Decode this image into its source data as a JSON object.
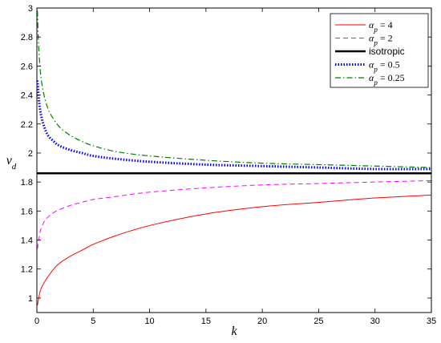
{
  "chart_data": {
    "type": "line",
    "title": "",
    "xlabel": "k",
    "ylabel": "v_d",
    "xlim": [
      0,
      35
    ],
    "ylim": [
      0.9,
      3
    ],
    "xticks": [
      0,
      5,
      10,
      15,
      20,
      25,
      30,
      35
    ],
    "yticks": [
      1,
      1.2,
      1.4,
      1.6,
      1.8,
      2,
      2.2,
      2.4,
      2.6,
      2.8,
      3
    ],
    "legend_position": "top-right",
    "grid": false,
    "series": [
      {
        "name": "α_p = 4",
        "legend_main": "α",
        "legend_sub": "p",
        "legend_rest": " = 4",
        "color": "#ff0000",
        "style": "solid",
        "x": [
          0.05,
          0.3,
          0.6,
          1,
          1.5,
          2,
          3,
          4,
          5,
          7,
          10,
          15,
          20,
          25,
          30,
          35
        ],
        "y": [
          0.95,
          1.05,
          1.1,
          1.15,
          1.2,
          1.24,
          1.29,
          1.33,
          1.37,
          1.43,
          1.5,
          1.58,
          1.63,
          1.66,
          1.69,
          1.71
        ]
      },
      {
        "name": "α_p = 2",
        "legend_main": "α",
        "legend_sub": "p",
        "legend_rest": " = 2",
        "color": "#ff00ff",
        "style": "dashed",
        "x": [
          0.05,
          0.3,
          0.6,
          1,
          1.5,
          2,
          3,
          4,
          5,
          7,
          10,
          15,
          20,
          25,
          30,
          35
        ],
        "y": [
          1.34,
          1.46,
          1.52,
          1.56,
          1.59,
          1.61,
          1.64,
          1.66,
          1.68,
          1.7,
          1.73,
          1.76,
          1.78,
          1.79,
          1.8,
          1.81
        ]
      },
      {
        "name": "isotropic",
        "legend_main": "isotropic",
        "legend_sub": "",
        "legend_rest": "",
        "color": "#000000",
        "style": "thick",
        "x": [
          0,
          35
        ],
        "y": [
          1.86,
          1.86
        ]
      },
      {
        "name": "α_p = 0.5",
        "legend_main": "α",
        "legend_sub": "p",
        "legend_rest": " = 0.5",
        "color": "#0000ff",
        "style": "dotted",
        "x": [
          0.05,
          0.2,
          0.4,
          0.7,
          1,
          1.5,
          2,
          3,
          4,
          5,
          7,
          10,
          15,
          20,
          25,
          30,
          35
        ],
        "y": [
          2.5,
          2.35,
          2.25,
          2.17,
          2.12,
          2.08,
          2.05,
          2.02,
          2.0,
          1.98,
          1.96,
          1.94,
          1.92,
          1.91,
          1.9,
          1.89,
          1.89
        ]
      },
      {
        "name": "α_p = 0.25",
        "legend_main": "α",
        "legend_sub": "p",
        "legend_rest": " = 0.25",
        "color": "#008000",
        "style": "dashdot",
        "x": [
          0.05,
          0.15,
          0.3,
          0.5,
          0.8,
          1.2,
          2,
          3,
          4,
          5,
          7,
          10,
          15,
          20,
          25,
          30,
          35
        ],
        "y": [
          2.98,
          2.75,
          2.57,
          2.45,
          2.35,
          2.27,
          2.18,
          2.12,
          2.08,
          2.05,
          2.01,
          1.98,
          1.95,
          1.93,
          1.92,
          1.91,
          1.9
        ]
      }
    ]
  }
}
